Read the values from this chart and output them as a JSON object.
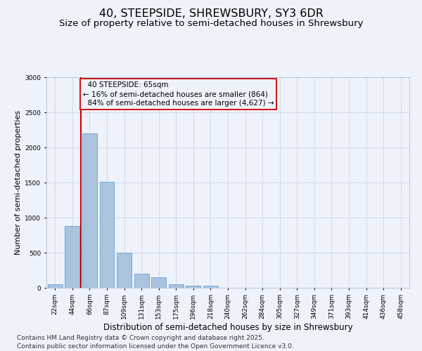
{
  "title": "40, STEEPSIDE, SHREWSBURY, SY3 6DR",
  "subtitle": "Size of property relative to semi-detached houses in Shrewsbury",
  "xlabel": "Distribution of semi-detached houses by size in Shrewsbury",
  "ylabel": "Number of semi-detached properties",
  "footnote1": "Contains HM Land Registry data © Crown copyright and database right 2025.",
  "footnote2": "Contains public sector information licensed under the Open Government Licence v3.0.",
  "bin_labels": [
    "22sqm",
    "44sqm",
    "66sqm",
    "87sqm",
    "109sqm",
    "131sqm",
    "153sqm",
    "175sqm",
    "196sqm",
    "218sqm",
    "240sqm",
    "262sqm",
    "284sqm",
    "305sqm",
    "327sqm",
    "349sqm",
    "371sqm",
    "393sqm",
    "414sqm",
    "436sqm",
    "458sqm"
  ],
  "bar_values": [
    55,
    880,
    2200,
    1510,
    500,
    200,
    150,
    55,
    35,
    30,
    0,
    0,
    0,
    0,
    0,
    0,
    0,
    0,
    0,
    0,
    0
  ],
  "bar_color": "#aac4e0",
  "bar_edgecolor": "#6a9fcf",
  "grid_color": "#d0d8ea",
  "bg_color": "#eef2fb",
  "marker_line_color": "#cc0000",
  "annotation_box_edgecolor": "#cc0000",
  "marker_label": "40 STEEPSIDE: 65sqm",
  "marker_smaller_pct": "16%",
  "marker_smaller_n": "864",
  "marker_larger_pct": "84%",
  "marker_larger_n": "4,627",
  "ylim": [
    0,
    3000
  ],
  "yticks": [
    0,
    500,
    1000,
    1500,
    2000,
    2500,
    3000
  ],
  "title_fontsize": 11.5,
  "subtitle_fontsize": 9.5,
  "ylabel_fontsize": 8,
  "xlabel_fontsize": 8.5,
  "tick_fontsize": 6.5,
  "annotation_fontsize": 7.5,
  "footnote_fontsize": 6.5
}
